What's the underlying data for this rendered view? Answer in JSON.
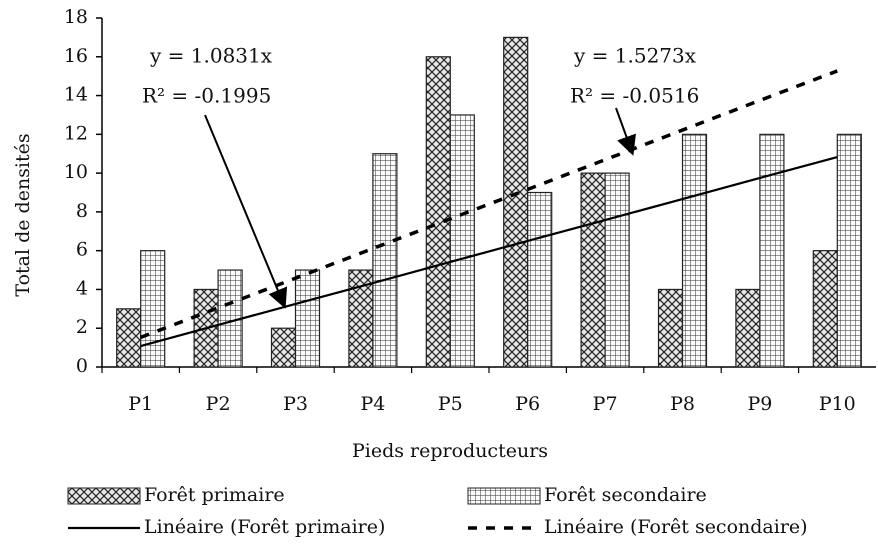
{
  "chart_data": {
    "type": "bar",
    "x_label": "Pieds reproducteurs",
    "y_label": "Total de densités",
    "categories": [
      "P1",
      "P2",
      "P3",
      "P4",
      "P5",
      "P6",
      "P7",
      "P8",
      "P9",
      "P10"
    ],
    "ylim": [
      0,
      18
    ],
    "yticks": [
      0,
      2,
      4,
      6,
      8,
      10,
      12,
      14,
      16,
      18
    ],
    "series": [
      {
        "name": "Forêt primaire",
        "type": "bar",
        "color": "#222222",
        "pattern": "crosshatch",
        "values": [
          3,
          4,
          2,
          5,
          16,
          17,
          10,
          4,
          4,
          6
        ]
      },
      {
        "name": "Forêt secondaire",
        "type": "bar",
        "color": "#222222",
        "pattern": "grid",
        "values": [
          6,
          5,
          5,
          11,
          13,
          9,
          10,
          12,
          12,
          12
        ]
      },
      {
        "name": "Linéaire (Forêt primaire)",
        "type": "line",
        "color": "#000000",
        "dash": "solid",
        "values": [
          1.08,
          2.17,
          3.25,
          4.33,
          5.42,
          6.5,
          7.58,
          8.66,
          9.75,
          10.83
        ]
      },
      {
        "name": "Linéaire (Forêt secondaire)",
        "type": "line",
        "color": "#000000",
        "dash": "dashed",
        "values": [
          1.53,
          3.05,
          4.58,
          6.11,
          7.64,
          9.16,
          10.69,
          12.22,
          13.75,
          15.27
        ]
      }
    ],
    "annotations": [
      "y = 1.0831x",
      "R² = -0.1995",
      "y = 1.5273x",
      "R² = -0.0516"
    ]
  }
}
